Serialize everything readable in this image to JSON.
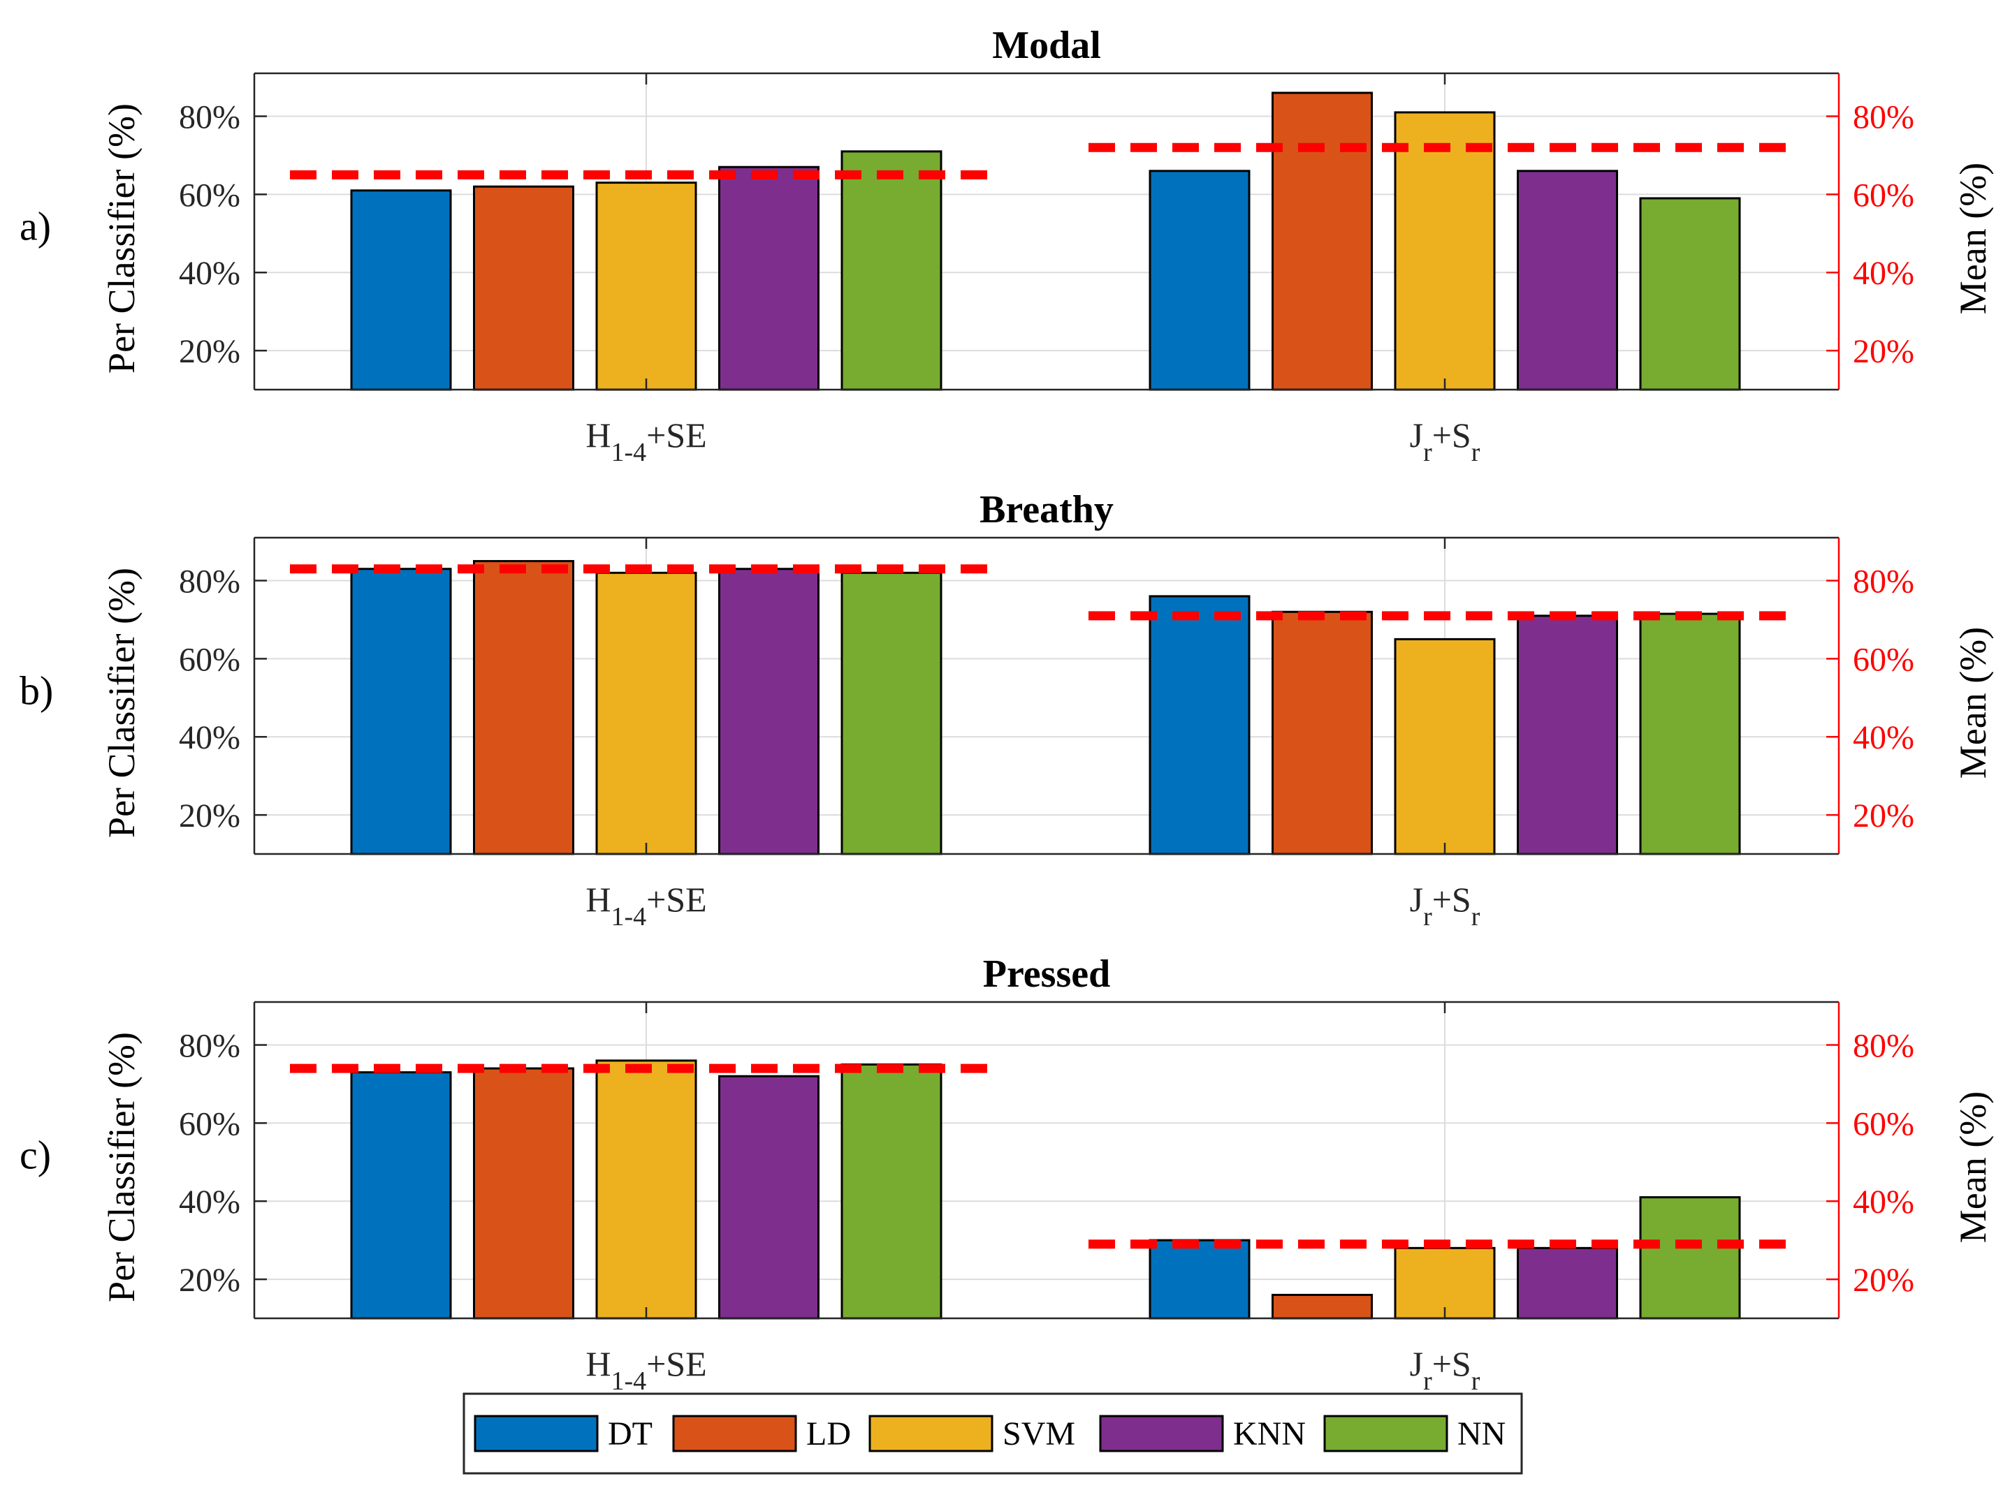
{
  "chart_data": {
    "type": "bar",
    "series_names": [
      "DT",
      "LD",
      "SVM",
      "KNN",
      "NN"
    ],
    "series_colors": [
      "#0072BD",
      "#D95319",
      "#EDB120",
      "#7E2F8E",
      "#77AC30"
    ],
    "mean_line_color": "#FF0000",
    "left_axis_label": "Per Classifier (%)",
    "right_axis_label": "Mean (%)",
    "ylim": [
      10,
      91
    ],
    "yticks": [
      20,
      40,
      60,
      80
    ],
    "ytick_labels": [
      "20%",
      "40%",
      "60%",
      "80%"
    ],
    "grid": true,
    "legend_position": "bottom-center",
    "categories": [
      {
        "base": "H",
        "sub": "1-4",
        "rest": "+SE"
      },
      {
        "base": "J",
        "sub": "r",
        "rest": "+S",
        "sub2": "r"
      }
    ],
    "panels": [
      {
        "letter": "a)",
        "title": "Modal",
        "values": [
          [
            61,
            62,
            63,
            67,
            71
          ],
          [
            66,
            86,
            81,
            66,
            59
          ]
        ],
        "means": [
          65,
          72
        ]
      },
      {
        "letter": "b)",
        "title": "Breathy",
        "values": [
          [
            83,
            85,
            82,
            83,
            82
          ],
          [
            76,
            72,
            65,
            71,
            71.5
          ]
        ],
        "means": [
          83,
          71
        ]
      },
      {
        "letter": "c)",
        "title": "Pressed",
        "values": [
          [
            73,
            74,
            76,
            72,
            75
          ],
          [
            30,
            16,
            28,
            28,
            41
          ]
        ],
        "means": [
          74,
          29
        ]
      }
    ]
  }
}
